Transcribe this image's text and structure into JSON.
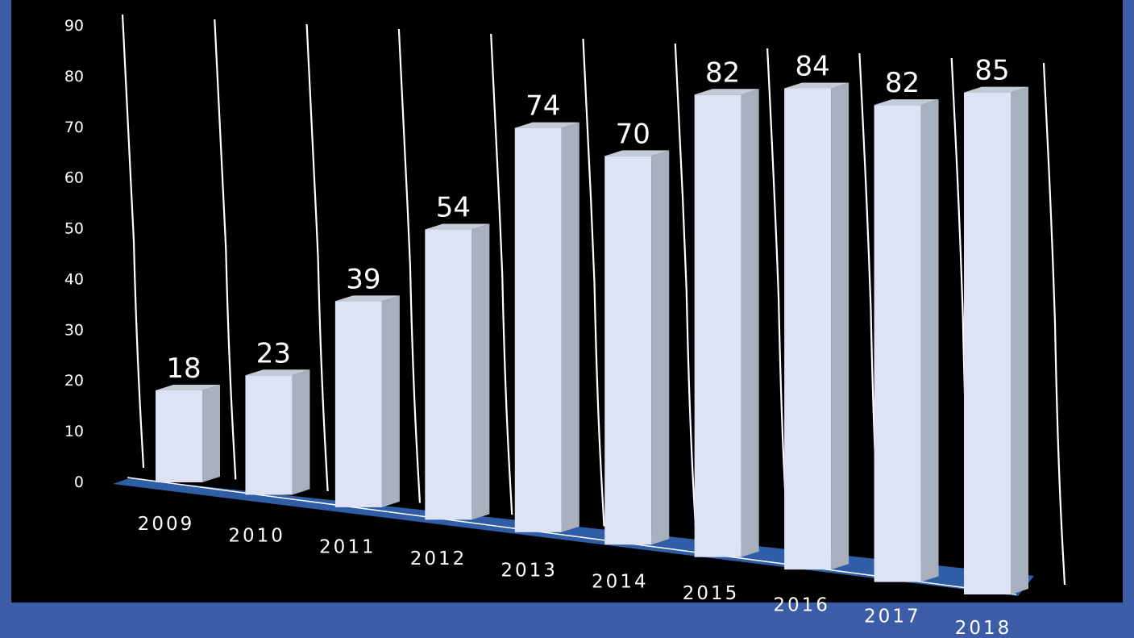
{
  "colors": {
    "frame": "#3d5ca8",
    "plot_background": "#000000",
    "bar_front": "#dde3f5",
    "bar_side": "#a9b0bd",
    "bar_top": "#c5cbd6",
    "floor": "#2f5ea6",
    "gridline": "#ffffff",
    "text": "#ffffff"
  },
  "chart_data": {
    "type": "bar",
    "style": "3d-column-perspective",
    "title": "",
    "xlabel": "",
    "ylabel": "",
    "categories": [
      "2009",
      "2010",
      "2011",
      "2012",
      "2013",
      "2014",
      "2015",
      "2016",
      "2017",
      "2018"
    ],
    "values": [
      18,
      23,
      39,
      54,
      74,
      70,
      82,
      84,
      82,
      85
    ],
    "data_labels": [
      "18",
      "23",
      "39",
      "54",
      "74",
      "70",
      "82",
      "84",
      "82",
      "85"
    ],
    "y_ticks": [
      "0",
      "10",
      "20",
      "30",
      "40",
      "50",
      "60",
      "70",
      "80",
      "90"
    ],
    "ylim": [
      0,
      90
    ],
    "grid": true,
    "legend": "none"
  }
}
